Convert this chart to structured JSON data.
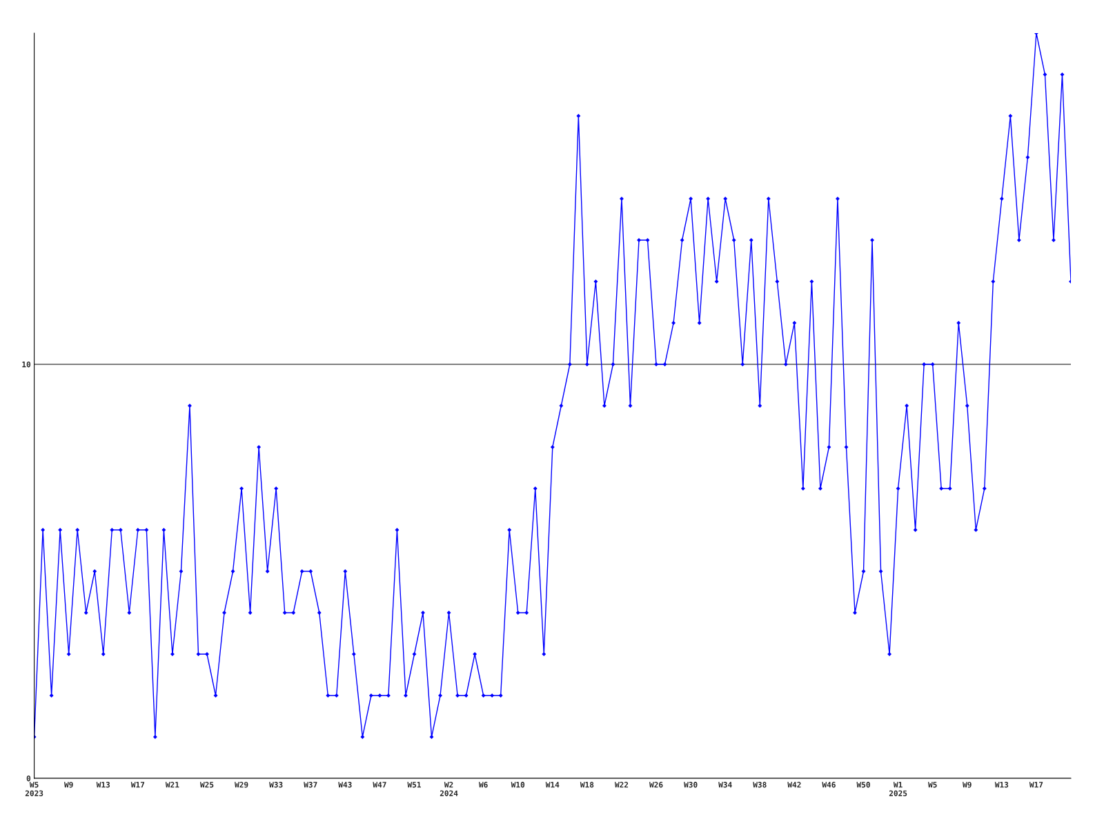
{
  "chart_data": {
    "type": "line",
    "categories": [
      "W5\n2023",
      null,
      null,
      null,
      "W9",
      null,
      null,
      null,
      "W13",
      null,
      null,
      null,
      "W17",
      null,
      null,
      null,
      "W21",
      null,
      null,
      null,
      "W25",
      null,
      null,
      null,
      "W29",
      null,
      null,
      null,
      "W33",
      null,
      null,
      null,
      "W37",
      null,
      null,
      null,
      "W43",
      null,
      null,
      null,
      "W47",
      null,
      null,
      null,
      "W51",
      null,
      null,
      null,
      "W2\n2024",
      null,
      null,
      null,
      "W6",
      null,
      null,
      null,
      "W10",
      null,
      null,
      null,
      "W14",
      null,
      null,
      null,
      "W18",
      null,
      null,
      null,
      "W22",
      null,
      null,
      null,
      "W26",
      null,
      null,
      null,
      "W30",
      null,
      null,
      null,
      "W34",
      null,
      null,
      null,
      "W38",
      null,
      null,
      null,
      "W42",
      null,
      null,
      null,
      "W46",
      null,
      null,
      null,
      "W50",
      null,
      null,
      null,
      "W1\n2025",
      null,
      null,
      null,
      "W5",
      null,
      null,
      null,
      "W9",
      null,
      null,
      null,
      "W13",
      null,
      null,
      null,
      "W17",
      null,
      null,
      null,
      null
    ],
    "series": [
      {
        "color": "#0000ff",
        "values": [
          1,
          6,
          2,
          6,
          3,
          6,
          4,
          5,
          3,
          6,
          6,
          4,
          6,
          6,
          1,
          6,
          3,
          5,
          9,
          3,
          3,
          2,
          4,
          5,
          7,
          4,
          8,
          5,
          7,
          4,
          4,
          5,
          5,
          4,
          2,
          2,
          5,
          3,
          1,
          2,
          2,
          2,
          6,
          2,
          3,
          4,
          1,
          2,
          4,
          2,
          2,
          3,
          2,
          2,
          2,
          6,
          4,
          4,
          7,
          3,
          8,
          9,
          10,
          16,
          10,
          12,
          9,
          10,
          14,
          9,
          13,
          13,
          10,
          10,
          11,
          13,
          14,
          11,
          14,
          12,
          14,
          13,
          10,
          13,
          9,
          14,
          12,
          10,
          11,
          7,
          12,
          7,
          8,
          14,
          8,
          4,
          5,
          13,
          5,
          3,
          7,
          9,
          6,
          10,
          10,
          7,
          7,
          11,
          9,
          6,
          7,
          12,
          14,
          16,
          13,
          15,
          18,
          17,
          13,
          17,
          12
        ]
      }
    ],
    "ylim": [
      0,
      18
    ],
    "yticks": [
      0,
      10
    ],
    "grid": "y",
    "marker": "diamond",
    "line_style": "solid"
  }
}
